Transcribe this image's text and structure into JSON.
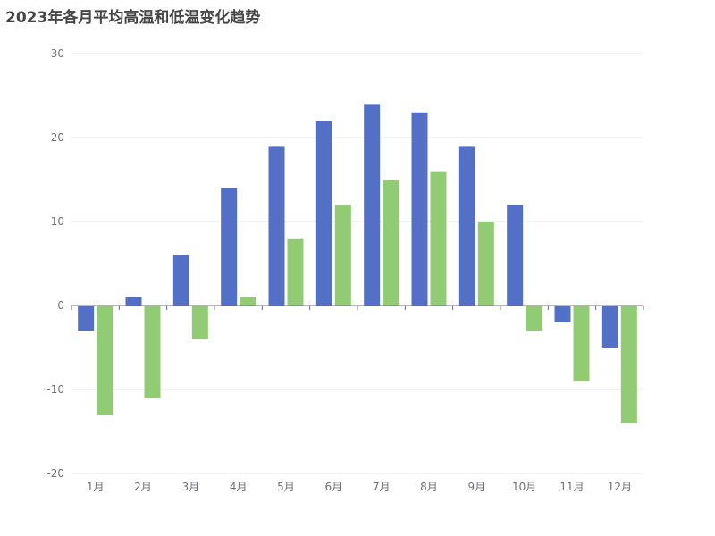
{
  "chart_data": {
    "type": "bar",
    "title": "2023年各月平均高温和低温变化趋势",
    "xlabel": "",
    "ylabel": "",
    "categories": [
      "1月",
      "2月",
      "3月",
      "4月",
      "5月",
      "6月",
      "7月",
      "8月",
      "9月",
      "10月",
      "11月",
      "12月"
    ],
    "series": [
      {
        "values": [
          -3,
          1,
          6,
          14,
          19,
          22,
          24,
          23,
          19,
          12,
          -2,
          -5
        ],
        "color": "#5470c6"
      },
      {
        "values": [
          -13,
          -11,
          -4,
          1,
          8,
          12,
          15,
          16,
          10,
          -3,
          -9,
          -14
        ],
        "color": "#91cc75"
      }
    ],
    "ylim": [
      -20,
      30
    ],
    "yticks": [
      -20,
      -10,
      0,
      10,
      20,
      30
    ],
    "grid": true,
    "legend": "none"
  }
}
